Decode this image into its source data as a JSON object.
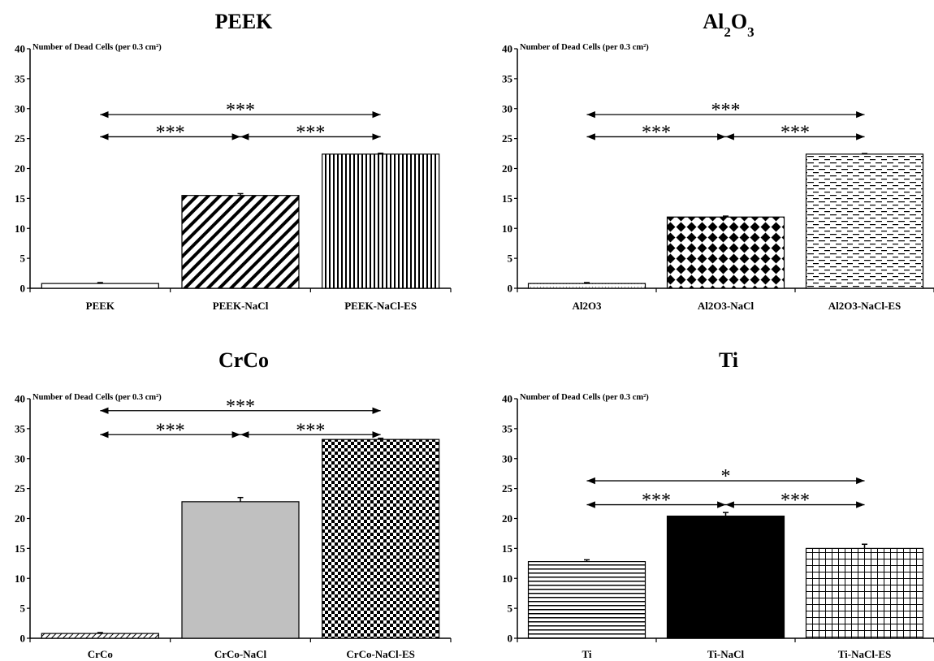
{
  "chart_data": [
    {
      "type": "bar",
      "title": "PEEK",
      "ylabel": "Number of Dead Cells (per 0.3 cm²)",
      "ylim": [
        0,
        40
      ],
      "yticks": [
        0,
        5,
        10,
        15,
        20,
        25,
        30,
        35,
        40
      ],
      "grid": false,
      "categories": [
        "PEEK",
        "PEEK-NaCl",
        "PEEK-NaCl-ES"
      ],
      "values": [
        0.8,
        15.5,
        22.4
      ],
      "errors": [
        0.15,
        0.3,
        0.15
      ],
      "fills": [
        "white",
        "diag",
        "vlines"
      ],
      "significance": [
        {
          "from": 0,
          "to": 2,
          "label": "***",
          "y": 29
        },
        {
          "from": 0,
          "to": 1,
          "label": "***",
          "y": 25.3
        },
        {
          "from": 1,
          "to": 2,
          "label": "***",
          "y": 25.3
        }
      ]
    },
    {
      "type": "bar",
      "title": "Al2O3",
      "title_html": "Al<tspan baseline-shift=\"sub\" font-size=\"17\">2</tspan>O<tspan baseline-shift=\"sub\" font-size=\"17\">3</tspan>",
      "ylabel": "Number of Dead Cells (per 0.3 cm²)",
      "ylim": [
        0,
        40
      ],
      "yticks": [
        0,
        5,
        10,
        15,
        20,
        25,
        30,
        35,
        40
      ],
      "grid": false,
      "categories": [
        "Al2O3",
        "Al2O3-NaCl",
        "Al2O3-NaCl-ES"
      ],
      "values": [
        0.8,
        11.9,
        22.4
      ],
      "errors": [
        0.15,
        0.15,
        0.1
      ],
      "fills": [
        "dots",
        "diamonds",
        "dashes"
      ],
      "significance": [
        {
          "from": 0,
          "to": 2,
          "label": "***",
          "y": 29
        },
        {
          "from": 0,
          "to": 1,
          "label": "***",
          "y": 25.3
        },
        {
          "from": 1,
          "to": 2,
          "label": "***",
          "y": 25.3
        }
      ]
    },
    {
      "type": "bar",
      "title": "CrCo",
      "ylabel": "Number of Dead Cells (per 0.3 cm²)",
      "ylim": [
        0,
        40
      ],
      "yticks": [
        0,
        5,
        10,
        15,
        20,
        25,
        30,
        35,
        40
      ],
      "grid": false,
      "categories": [
        "CrCo",
        "CrCo-NaCl",
        "CrCo-NaCl-ES"
      ],
      "values": [
        0.8,
        22.8,
        33.2
      ],
      "errors": [
        0.15,
        0.7,
        0.2
      ],
      "fills": [
        "diag-sparse",
        "gray",
        "checker"
      ],
      "significance": [
        {
          "from": 0,
          "to": 2,
          "label": "***",
          "y": 38
        },
        {
          "from": 0,
          "to": 1,
          "label": "***",
          "y": 34
        },
        {
          "from": 1,
          "to": 2,
          "label": "***",
          "y": 34
        }
      ]
    },
    {
      "type": "bar",
      "title": "Ti",
      "ylabel": "Number of Dead Cells (per 0.3 cm²)",
      "ylim": [
        0,
        40
      ],
      "yticks": [
        0,
        5,
        10,
        15,
        20,
        25,
        30,
        35,
        40
      ],
      "grid": false,
      "categories": [
        "Ti",
        "Ti-NaCl",
        "Ti-NaCl-ES"
      ],
      "values": [
        12.8,
        20.4,
        15.0
      ],
      "errors": [
        0.3,
        0.6,
        0.7
      ],
      "fills": [
        "hlines",
        "black",
        "grid"
      ],
      "significance": [
        {
          "from": 0,
          "to": 2,
          "label": "*",
          "y": 26.3
        },
        {
          "from": 0,
          "to": 1,
          "label": "***",
          "y": 22.3
        },
        {
          "from": 1,
          "to": 2,
          "label": "***",
          "y": 22.3
        }
      ]
    }
  ]
}
